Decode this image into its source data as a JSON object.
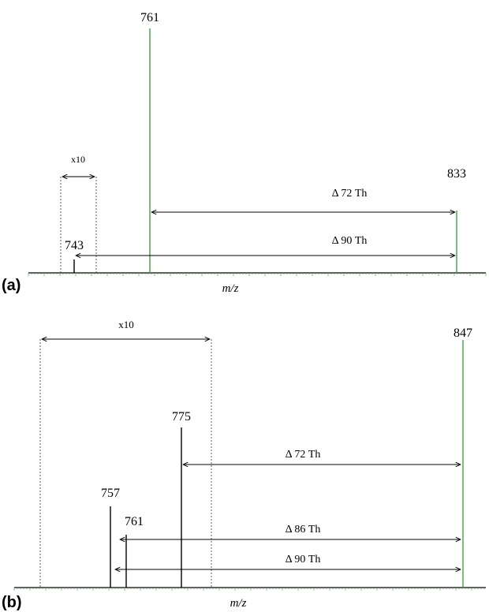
{
  "colors": {
    "green_peak": "#3ea23e",
    "black_peak": "#000000",
    "axis": "#000000",
    "axis_ticks": "#5a9e5a"
  },
  "chart_data": [
    {
      "type": "bar",
      "panel_label": "(a)",
      "xlabel": "m/z",
      "peaks": [
        {
          "mz": 743,
          "label": "743",
          "rel_height": 0.055,
          "color": "black"
        },
        {
          "mz": 761,
          "label": "761",
          "rel_height": 1.0,
          "color": "green"
        },
        {
          "mz": 833,
          "label": "833",
          "rel_height": 0.25,
          "color": "green"
        }
      ],
      "zoom_box": {
        "label": "x10",
        "style": "dotted"
      },
      "annotations": [
        {
          "text": "Δ 72 Th",
          "from_mz": 761,
          "to_mz": 833
        },
        {
          "text": "Δ 90 Th",
          "from_mz": 743,
          "to_mz": 833
        }
      ]
    },
    {
      "type": "bar",
      "panel_label": "(b)",
      "xlabel": "m/z",
      "peaks": [
        {
          "mz": 757,
          "label": "757",
          "rel_height": 0.3,
          "color": "black"
        },
        {
          "mz": 761,
          "label": "761",
          "rel_height": 0.2,
          "color": "black"
        },
        {
          "mz": 775,
          "label": "775",
          "rel_height": 0.61,
          "color": "black"
        },
        {
          "mz": 847,
          "label": "847",
          "rel_height": 1.0,
          "color": "green"
        }
      ],
      "zoom_box": {
        "label": "x10",
        "style": "dotted"
      },
      "annotations": [
        {
          "text": "Δ 72 Th",
          "from_mz": 775,
          "to_mz": 847
        },
        {
          "text": "Δ 86 Th",
          "from_mz": 761,
          "to_mz": 847
        },
        {
          "text": "Δ 90 Th",
          "from_mz": 757,
          "to_mz": 847
        }
      ]
    }
  ]
}
